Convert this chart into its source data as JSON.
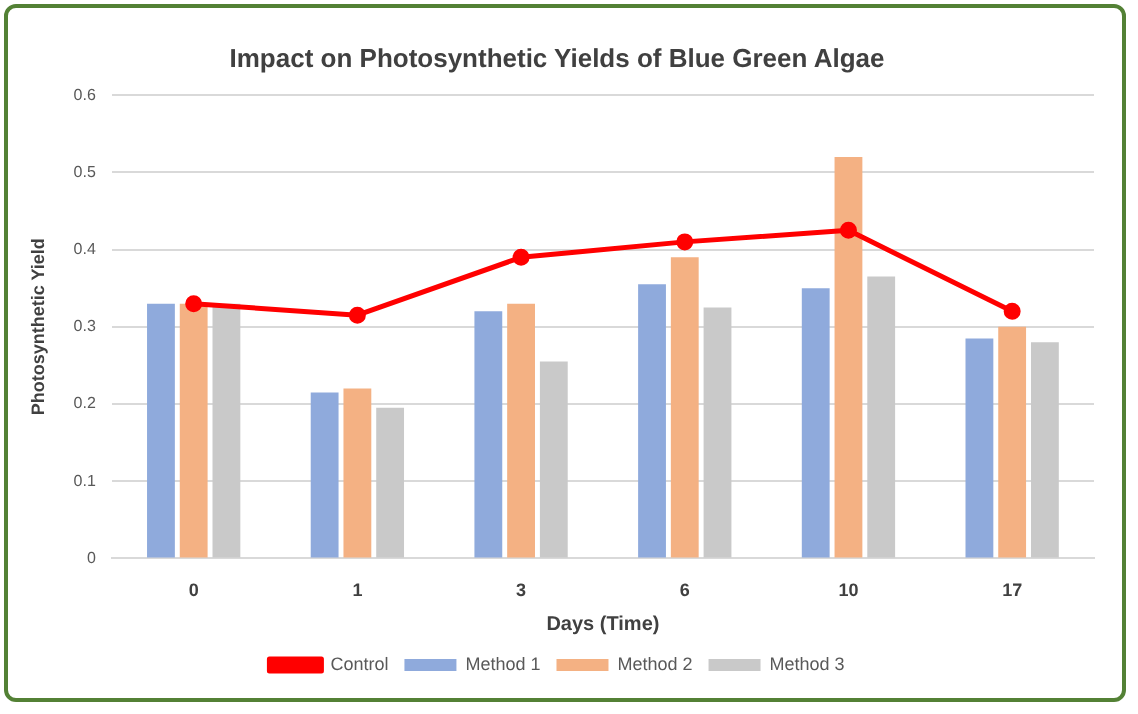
{
  "chart_data": {
    "type": "bar",
    "title": "Impact on Photosynthetic Yields of Blue Green Algae",
    "xlabel": "Days (Time)",
    "ylabel": "Photosynthetic Yield",
    "categories": [
      "0",
      "1",
      "3",
      "6",
      "10",
      "17"
    ],
    "series": [
      {
        "name": "Method 1",
        "color": "#8faadc",
        "values": [
          0.33,
          0.215,
          0.32,
          0.355,
          0.35,
          0.285
        ]
      },
      {
        "name": "Method 2",
        "color": "#f4b183",
        "values": [
          0.33,
          0.22,
          0.33,
          0.39,
          0.52,
          0.3
        ]
      },
      {
        "name": "Method 3",
        "color": "#c9c9c9",
        "values": [
          0.33,
          0.195,
          0.255,
          0.325,
          0.365,
          0.28
        ]
      },
      {
        "name": "Control",
        "type": "line",
        "color": "#ff0000",
        "values": [
          0.33,
          0.315,
          0.39,
          0.41,
          0.425,
          0.32
        ],
        "marker": "circle"
      }
    ],
    "ylim": [
      0,
      0.6
    ],
    "yticks": [
      0,
      0.1,
      0.2,
      0.3,
      0.4,
      0.5,
      0.6
    ],
    "grid": "y",
    "legend": "bottom"
  }
}
